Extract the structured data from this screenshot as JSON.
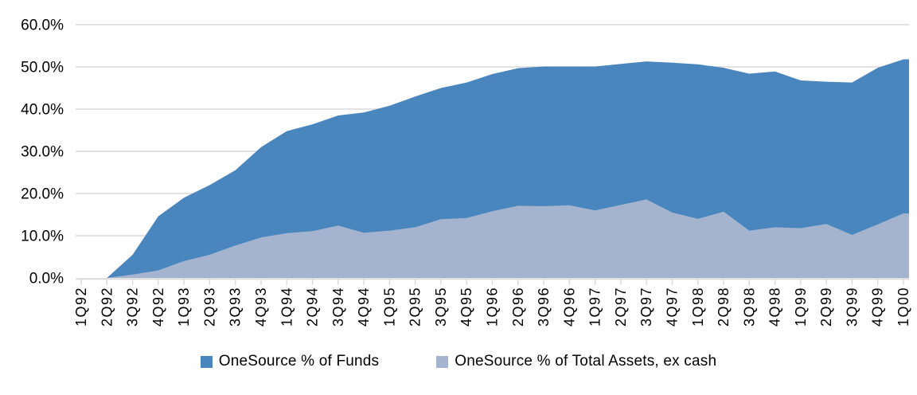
{
  "chart_data": {
    "type": "area",
    "title": "",
    "xlabel": "",
    "ylabel": "",
    "ylim": [
      0,
      60
    ],
    "grid": true,
    "legend_position": "bottom",
    "overlap_mode": "overlapping (not stacked); second series drawn in front",
    "background": "#FFFFFF",
    "gridline_color": "#D9D9D9",
    "axis_color": "#D9D9D9",
    "text_color": "#000000",
    "y_ticks": [
      "0.0%",
      "10.0%",
      "20.0%",
      "30.0%",
      "40.0%",
      "50.0%",
      "60.0%"
    ],
    "categories": [
      "1Q92",
      "2Q92",
      "3Q92",
      "4Q92",
      "1Q93",
      "2Q93",
      "3Q93",
      "4Q93",
      "1Q94",
      "2Q94",
      "3Q94",
      "4Q94",
      "1Q95",
      "2Q95",
      "3Q95",
      "4Q95",
      "1Q96",
      "2Q96",
      "3Q96",
      "4Q96",
      "1Q97",
      "2Q97",
      "3Q97",
      "4Q97",
      "1Q98",
      "2Q98",
      "3Q98",
      "4Q98",
      "1Q99",
      "2Q99",
      "3Q99",
      "4Q99",
      "1Q00"
    ],
    "series": [
      {
        "name": "OneSource % of Funds",
        "color": "#4A86BE",
        "values": [
          0.0,
          0.0,
          5.5,
          14.6,
          19.0,
          22.0,
          25.5,
          31.0,
          34.8,
          36.4,
          38.5,
          39.2,
          40.8,
          43.0,
          45.0,
          46.3,
          48.3,
          49.7,
          50.1,
          50.1,
          50.1,
          50.7,
          51.3,
          51.0,
          50.6,
          49.8,
          48.4,
          48.9,
          46.8,
          46.5,
          46.3,
          49.8,
          51.8
        ]
      },
      {
        "name": "OneSource % of Total Assets, ex cash",
        "color": "#A4B4CF",
        "values": [
          0.0,
          0.0,
          0.8,
          1.8,
          4.0,
          5.5,
          7.7,
          9.6,
          10.6,
          11.1,
          12.4,
          10.7,
          11.2,
          12.0,
          13.9,
          14.2,
          15.8,
          17.1,
          17.0,
          17.2,
          16.0,
          17.3,
          18.6,
          15.5,
          14.0,
          15.7,
          11.2,
          12.0,
          11.8,
          12.8,
          10.2,
          12.7,
          15.3
        ]
      }
    ]
  },
  "legend": {
    "items": [
      {
        "label": "OneSource % of Funds"
      },
      {
        "label": "OneSource % of Total Assets, ex cash"
      }
    ]
  }
}
